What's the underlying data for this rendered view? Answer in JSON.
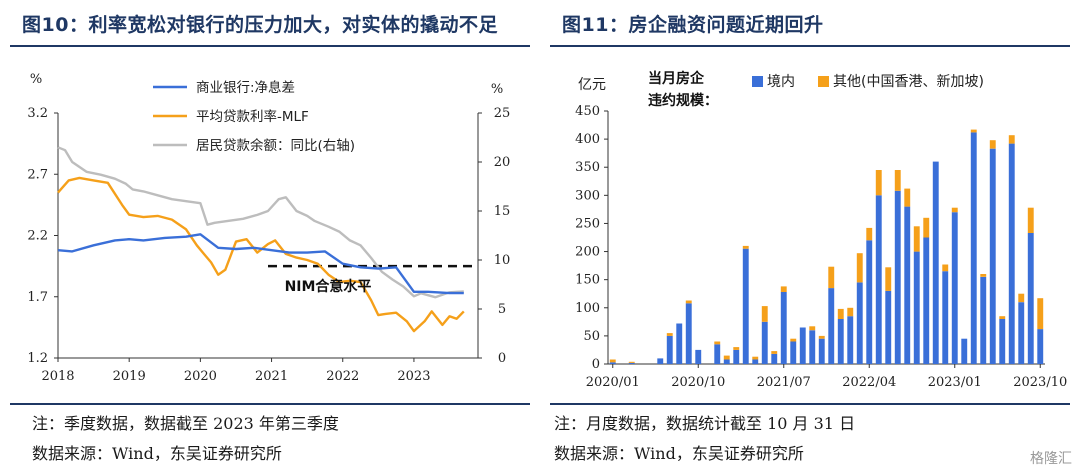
{
  "left": {
    "title": "图10：利率宽松对银行的压力加大，对实体的撬动不足",
    "note": "注：季度数据，数据截至 2023 年第三季度",
    "source": "数据来源：Wind，东吴证券研究所",
    "annotation": "NIM合意水平",
    "left_unit": "%",
    "right_unit": "%"
  },
  "right": {
    "title": "图11：房企融资问题近期回升",
    "note": "注：月度数据，数据统计截至 10 月 31 日",
    "source": "数据来源：Wind，东吴证券研究所",
    "y_unit": "亿元",
    "legend_title_1": "当月房企",
    "legend_title_2": "违约规模："
  },
  "watermark": "格隆汇",
  "colors": {
    "title": "#1f3864",
    "nim": "#3a6fd8",
    "loan_rate": "#f5a01a",
    "loan_growth": "#bdbdbd",
    "domestic": "#3a6fd8",
    "other": "#f5a01a"
  },
  "chart_data": [
    {
      "type": "line",
      "x_range": [
        2018.0,
        2023.9
      ],
      "x_ticks": [
        "2018",
        "2019",
        "2020",
        "2021",
        "2022",
        "2023"
      ],
      "ylim_left": [
        1.2,
        3.2
      ],
      "yticks_left": [
        "3.2",
        "2.7",
        "2.2",
        "1.7",
        "1.2"
      ],
      "ylim_right": [
        0,
        25
      ],
      "yticks_right": [
        "25",
        "20",
        "15",
        "10",
        "5",
        "0"
      ],
      "reference_line": {
        "value": 1.95,
        "label": "NIM合意水平"
      },
      "series": [
        {
          "name": "商业银行:净息差",
          "axis": "left",
          "color": "#3a6fd8",
          "x": [
            2018.0,
            2018.2,
            2018.5,
            2018.8,
            2019.0,
            2019.2,
            2019.5,
            2019.8,
            2020.0,
            2020.25,
            2020.5,
            2020.75,
            2021.0,
            2021.25,
            2021.5,
            2021.75,
            2022.0,
            2022.25,
            2022.5,
            2022.75,
            2023.0,
            2023.2,
            2023.5,
            2023.7
          ],
          "y": [
            2.08,
            2.07,
            2.12,
            2.16,
            2.17,
            2.16,
            2.18,
            2.19,
            2.21,
            2.1,
            2.09,
            2.1,
            2.08,
            2.06,
            2.06,
            2.07,
            1.97,
            1.94,
            1.93,
            1.94,
            1.74,
            1.74,
            1.73,
            1.73
          ]
        },
        {
          "name": "平均贷款利率-MLF",
          "axis": "left",
          "color": "#f5a01a",
          "x": [
            2018.0,
            2018.15,
            2018.3,
            2018.5,
            2018.7,
            2018.9,
            2019.0,
            2019.2,
            2019.4,
            2019.6,
            2019.8,
            2019.95,
            2020.05,
            2020.15,
            2020.25,
            2020.35,
            2020.5,
            2020.65,
            2020.8,
            2020.95,
            2021.05,
            2021.2,
            2021.35,
            2021.5,
            2021.65,
            2021.8,
            2021.95,
            2022.1,
            2022.25,
            2022.4,
            2022.5,
            2022.6,
            2022.75,
            2022.9,
            2023.0,
            2023.15,
            2023.25,
            2023.4,
            2023.5,
            2023.6,
            2023.7
          ],
          "y": [
            2.55,
            2.65,
            2.67,
            2.65,
            2.63,
            2.45,
            2.37,
            2.35,
            2.36,
            2.33,
            2.25,
            2.12,
            2.05,
            1.98,
            1.88,
            1.92,
            2.15,
            2.17,
            2.06,
            2.13,
            2.16,
            2.05,
            2.02,
            2.0,
            1.97,
            1.88,
            1.82,
            1.83,
            1.82,
            1.67,
            1.55,
            1.56,
            1.57,
            1.5,
            1.42,
            1.5,
            1.58,
            1.47,
            1.54,
            1.52,
            1.58
          ]
        },
        {
          "name": "居民贷款余额：同比(右轴)",
          "axis": "right",
          "color": "#bdbdbd",
          "x": [
            2018.0,
            2018.1,
            2018.2,
            2018.4,
            2018.6,
            2018.8,
            2018.95,
            2019.05,
            2019.2,
            2019.4,
            2019.6,
            2019.8,
            2020.0,
            2020.1,
            2020.2,
            2020.4,
            2020.6,
            2020.8,
            2020.95,
            2021.1,
            2021.2,
            2021.35,
            2021.5,
            2021.6,
            2021.8,
            2021.95,
            2022.1,
            2022.25,
            2022.4,
            2022.55,
            2022.7,
            2022.85,
            2023.0,
            2023.1,
            2023.3,
            2023.5,
            2023.7
          ],
          "y": [
            21.5,
            21.2,
            20.0,
            19.0,
            18.7,
            18.3,
            17.8,
            17.2,
            17.0,
            16.6,
            16.2,
            16.0,
            15.8,
            13.6,
            13.8,
            14.0,
            14.2,
            14.6,
            15.0,
            16.2,
            16.4,
            15.0,
            14.5,
            14.0,
            13.4,
            12.9,
            12.0,
            11.5,
            10.2,
            8.8,
            8.0,
            7.3,
            6.3,
            6.6,
            6.2,
            6.7,
            6.8
          ]
        }
      ]
    },
    {
      "type": "bar",
      "stacked": true,
      "ylim": [
        0,
        450
      ],
      "yticks": [
        "450",
        "400",
        "350",
        "300",
        "250",
        "200",
        "150",
        "100",
        "50",
        "0"
      ],
      "x_ticks": [
        "2020/01",
        "2020/10",
        "2021/07",
        "2022/04",
        "2023/01",
        "2023/10"
      ],
      "categories": [
        "2020/01",
        "2020/02",
        "2020/03",
        "2020/04",
        "2020/05",
        "2020/06",
        "2020/07",
        "2020/08",
        "2020/09",
        "2020/10",
        "2020/11",
        "2020/12",
        "2021/01",
        "2021/02",
        "2021/03",
        "2021/04",
        "2021/05",
        "2021/06",
        "2021/07",
        "2021/08",
        "2021/09",
        "2021/10",
        "2021/11",
        "2021/12",
        "2022/01",
        "2022/02",
        "2022/03",
        "2022/04",
        "2022/05",
        "2022/06",
        "2022/07",
        "2022/08",
        "2022/09",
        "2022/10",
        "2022/11",
        "2022/12",
        "2023/01",
        "2023/02",
        "2023/03",
        "2023/04",
        "2023/05",
        "2023/06",
        "2023/07",
        "2023/08",
        "2023/09",
        "2023/10"
      ],
      "series": [
        {
          "name": "境内",
          "color": "#3a6fd8",
          "values": [
            3,
            0,
            2,
            0,
            0,
            10,
            50,
            72,
            108,
            25,
            0,
            35,
            8,
            25,
            205,
            8,
            75,
            18,
            128,
            40,
            65,
            60,
            45,
            135,
            80,
            85,
            145,
            220,
            300,
            130,
            308,
            280,
            200,
            225,
            360,
            165,
            270,
            45,
            412,
            155,
            383,
            80,
            392,
            110,
            233,
            62
          ]
        },
        {
          "name": "其他(中国香港、新加坡)",
          "color": "#f5a01a",
          "values": [
            5,
            0,
            2,
            0,
            0,
            0,
            5,
            0,
            5,
            0,
            0,
            5,
            7,
            5,
            5,
            5,
            28,
            5,
            10,
            5,
            0,
            7,
            5,
            38,
            18,
            15,
            52,
            22,
            45,
            42,
            37,
            32,
            45,
            35,
            0,
            12,
            8,
            0,
            5,
            5,
            15,
            5,
            15,
            15,
            45,
            55
          ]
        }
      ]
    }
  ]
}
